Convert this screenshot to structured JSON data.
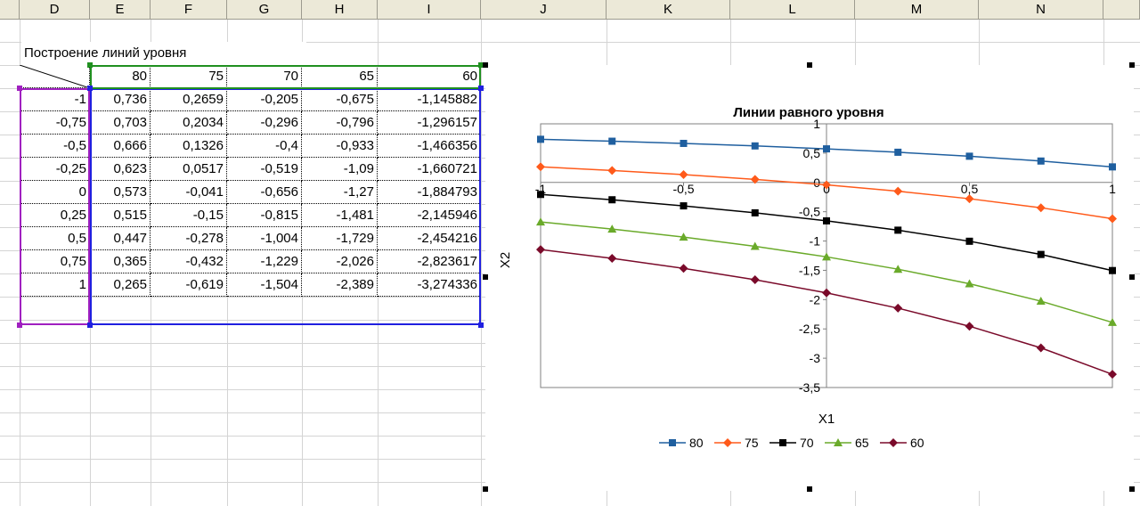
{
  "sheet": {
    "columns": [
      "D",
      "E",
      "F",
      "G",
      "H",
      "I",
      "J",
      "K",
      "L",
      "M",
      "N"
    ],
    "title_cell": "Построение линий уровня",
    "header_row": [
      "80",
      "75",
      "70",
      "65",
      "60"
    ],
    "rows": [
      {
        "x": "-1",
        "vals": [
          "0,736",
          "0,2659",
          "-0,205",
          "-0,675",
          "-1,145882"
        ]
      },
      {
        "x": "-0,75",
        "vals": [
          "0,703",
          "0,2034",
          "-0,296",
          "-0,796",
          "-1,296157"
        ]
      },
      {
        "x": "-0,5",
        "vals": [
          "0,666",
          "0,1326",
          "-0,4",
          "-0,933",
          "-1,466356"
        ]
      },
      {
        "x": "-0,25",
        "vals": [
          "0,623",
          "0,0517",
          "-0,519",
          "-1,09",
          "-1,660721"
        ]
      },
      {
        "x": "0",
        "vals": [
          "0,573",
          "-0,041",
          "-0,656",
          "-1,27",
          "-1,884793"
        ]
      },
      {
        "x": "0,25",
        "vals": [
          "0,515",
          "-0,15",
          "-0,815",
          "-1,481",
          "-2,145946"
        ]
      },
      {
        "x": "0,5",
        "vals": [
          "0,447",
          "-0,278",
          "-1,004",
          "-1,729",
          "-2,454216"
        ]
      },
      {
        "x": "0,75",
        "vals": [
          "0,365",
          "-0,432",
          "-1,229",
          "-2,026",
          "-2,823617"
        ]
      },
      {
        "x": "1",
        "vals": [
          "0,265",
          "-0,619",
          "-1,504",
          "-2,389",
          "-3,274336"
        ]
      }
    ]
  },
  "chart_data": {
    "type": "line",
    "title": "Линии равного уровня",
    "xlabel": "X1",
    "ylabel": "X2",
    "xlim": [
      -1,
      1
    ],
    "ylim": [
      -3.5,
      1
    ],
    "x_ticks": [
      "-1",
      "-0,5",
      "0",
      "0,5",
      "1"
    ],
    "y_ticks": [
      "1",
      "0,5",
      "0",
      "-0,5",
      "-1",
      "-1,5",
      "-2",
      "-2,5",
      "-3",
      "-3,5"
    ],
    "x": [
      -1,
      -0.75,
      -0.5,
      -0.25,
      0,
      0.25,
      0.5,
      0.75,
      1
    ],
    "legend_position": "bottom",
    "series": [
      {
        "name": "80",
        "color": "#1f5f9f",
        "marker": "square",
        "values": [
          0.736,
          0.703,
          0.666,
          0.623,
          0.573,
          0.515,
          0.447,
          0.365,
          0.265
        ]
      },
      {
        "name": "75",
        "color": "#ff5a1a",
        "marker": "diamond",
        "values": [
          0.2659,
          0.2034,
          0.1326,
          0.0517,
          -0.041,
          -0.15,
          -0.278,
          -0.432,
          -0.619
        ]
      },
      {
        "name": "70",
        "color": "#000000",
        "marker": "square",
        "values": [
          -0.205,
          -0.296,
          -0.4,
          -0.519,
          -0.656,
          -0.815,
          -1.004,
          -1.229,
          -1.504
        ]
      },
      {
        "name": "65",
        "color": "#6aaa2a",
        "marker": "triangle",
        "values": [
          -0.675,
          -0.796,
          -0.933,
          -1.09,
          -1.27,
          -1.481,
          -1.729,
          -2.026,
          -2.389
        ]
      },
      {
        "name": "60",
        "color": "#7a0a2a",
        "marker": "diamond",
        "values": [
          -1.145882,
          -1.296157,
          -1.466356,
          -1.660721,
          -1.884793,
          -2.145946,
          -2.454216,
          -2.823617,
          -3.274336
        ]
      }
    ]
  }
}
